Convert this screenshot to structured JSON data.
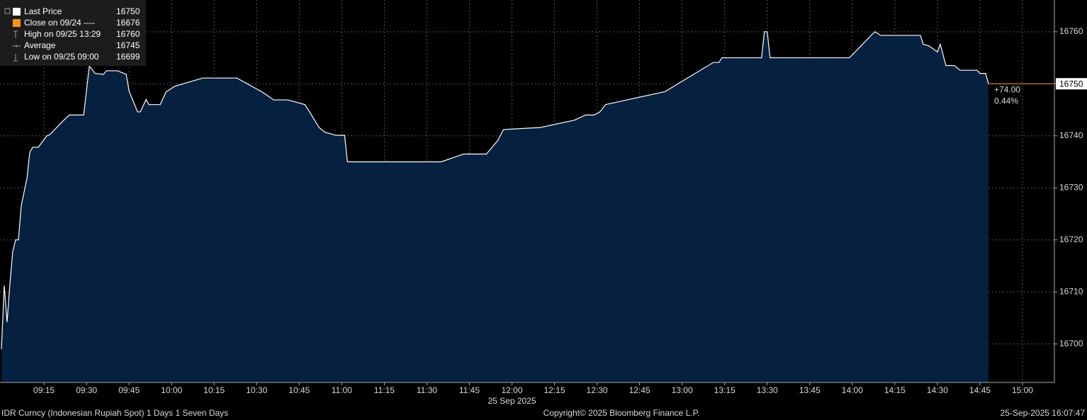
{
  "chart_data": {
    "type": "area",
    "legend": [
      {
        "label": "Last Price",
        "value": 16750
      },
      {
        "label": "Close on 09/24 ----",
        "value": 16676
      },
      {
        "label": "High on 09/25 13:29",
        "value": 16760
      },
      {
        "label": "Average",
        "value": 16745
      },
      {
        "label": "Low on 09/25 09:00",
        "value": 16699
      }
    ],
    "color": "#ffffff",
    "fill": "#06203f",
    "last_color": "#f7941d",
    "change": "+74.00",
    "change_pct": "0.44%",
    "x": [
      "09:00",
      "09:01",
      "09:02",
      "09:03",
      "09:04",
      "09:05",
      "09:06",
      "09:07",
      "09:09",
      "09:10",
      "09:11",
      "09:13",
      "09:16",
      "09:17",
      "09:22",
      "09:24",
      "09:29",
      "09:31",
      "09:33",
      "09:36",
      "09:37",
      "09:41",
      "09:44",
      "09:45",
      "09:48",
      "09:49",
      "09:51",
      "09:52",
      "09:56",
      "09:58",
      "10:01",
      "10:11",
      "10:23",
      "10:32",
      "10:36",
      "10:41",
      "10:47",
      "10:49",
      "10:52",
      "10:54",
      "10:58",
      "11:01",
      "11:02",
      "11:35",
      "11:43",
      "11:51",
      "11:53",
      "11:55",
      "11:57",
      "12:10",
      "12:22",
      "12:26",
      "12:29",
      "12:31",
      "12:33",
      "12:54",
      "13:11",
      "13:13",
      "13:14",
      "13:27",
      "13:28",
      "13:29",
      "13:30",
      "13:31",
      "13:59",
      "14:07",
      "14:08",
      "14:10",
      "14:24",
      "14:25",
      "14:27",
      "14:30",
      "14:31",
      "14:33",
      "14:36",
      "14:38",
      "14:44",
      "14:45",
      "14:47",
      "14:48"
    ],
    "values": [
      16699,
      16711.2,
      16704.2,
      16711.6,
      16717.8,
      16720,
      16720,
      16726.6,
      16731.8,
      16736.8,
      16737.8,
      16737.8,
      16740,
      16740.2,
      16743,
      16744,
      16744,
      16753.4,
      16752,
      16751.8,
      16752.5,
      16752.5,
      16751.8,
      16748.6,
      16744.6,
      16744.6,
      16747,
      16746,
      16746,
      16748.4,
      16749.5,
      16751.1,
      16751.1,
      16748.4,
      16746.9,
      16746.9,
      16746,
      16744.3,
      16741.6,
      16740.7,
      16740.1,
      16740.1,
      16735,
      16735,
      16736.5,
      16736.5,
      16737.8,
      16739.1,
      16741.2,
      16741.6,
      16743,
      16744,
      16744,
      16744.6,
      16746,
      16748.5,
      16754.1,
      16754.1,
      16755,
      16755,
      16755,
      16760,
      16760,
      16755,
      16755,
      16759.5,
      16760,
      16759.3,
      16759.3,
      16757.6,
      16757.3,
      16756.1,
      16757.6,
      16753.5,
      16753.5,
      16752.6,
      16752.6,
      16752,
      16752,
      16750
    ],
    "xlim": [
      "09:00",
      "15:11"
    ],
    "xticks": [
      "09:15",
      "09:30",
      "09:45",
      "10:00",
      "10:15",
      "10:30",
      "10:45",
      "11:00",
      "11:15",
      "11:30",
      "11:45",
      "12:00",
      "12:15",
      "12:30",
      "12:45",
      "13:00",
      "13:15",
      "13:30",
      "13:45",
      "14:00",
      "14:15",
      "14:30",
      "14:45",
      "15:00"
    ],
    "date_label": "25 Sep 2025",
    "date_at": "12:00",
    "ylim": [
      16692.6,
      16766.1
    ],
    "yticks": [
      16700,
      16710,
      16720,
      16730,
      16740,
      16750,
      16760
    ],
    "grid": true,
    "footer_left": "IDR Curncy (Indonesian Rupiah Spot) 1 Days 1 Seven Days",
    "footer_center": "Copyright© 2025 Bloomberg Finance L.P.",
    "footer_right": "25-Sep-2025 16:07:47"
  }
}
